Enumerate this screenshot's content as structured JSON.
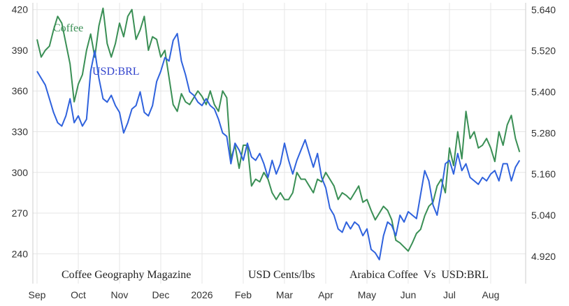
{
  "chart_data": {
    "type": "line",
    "x_ticks": [
      "Sep",
      "Oct",
      "Nov",
      "Dec",
      "2026",
      "Feb",
      "Mar",
      "Apr",
      "May",
      "Jun",
      "Jul",
      "Aug"
    ],
    "y_left": {
      "ticks": [
        240,
        270,
        300,
        330,
        360,
        390,
        420
      ],
      "range": [
        218,
        425
      ]
    },
    "y_right": {
      "ticks": [
        "4.920",
        "5.040",
        "5.160",
        "5.280",
        "5.400",
        "5.520",
        "5.640"
      ],
      "range": [
        4.84,
        5.66
      ]
    },
    "grid": true,
    "series": [
      {
        "name": "Coffee",
        "axis": "left",
        "color": "#3a8f55",
        "x": [
          0,
          0.1,
          0.2,
          0.3,
          0.4,
          0.5,
          0.6,
          0.7,
          0.8,
          0.9,
          1.0,
          1.1,
          1.2,
          1.3,
          1.4,
          1.5,
          1.6,
          1.7,
          1.8,
          1.9,
          2.0,
          2.1,
          2.2,
          2.3,
          2.4,
          2.5,
          2.6,
          2.7,
          2.8,
          2.9,
          3.0,
          3.1,
          3.2,
          3.3,
          3.4,
          3.5,
          3.6,
          3.7,
          3.8,
          3.9,
          4.0,
          4.1,
          4.2,
          4.3,
          4.4,
          4.5,
          4.6,
          4.7,
          4.8,
          4.9,
          5.0,
          5.1,
          5.2,
          5.3,
          5.4,
          5.5,
          5.6,
          5.7,
          5.8,
          5.9,
          6.0,
          6.1,
          6.2,
          6.3,
          6.4,
          6.5,
          6.6,
          6.7,
          6.8,
          6.9,
          7.0,
          7.1,
          7.2,
          7.3,
          7.4,
          7.5,
          7.6,
          7.7,
          7.8,
          7.9,
          8.0,
          8.1,
          8.2,
          8.3,
          8.4,
          8.5,
          8.6,
          8.7,
          8.8,
          8.9,
          9.0,
          9.1,
          9.2,
          9.3,
          9.4,
          9.5,
          9.6,
          9.7,
          9.8,
          9.9,
          10.0,
          10.1,
          10.2,
          10.3,
          10.4,
          10.5,
          10.6,
          10.7,
          10.8,
          10.9,
          11.0,
          11.1,
          11.2,
          11.3,
          11.4,
          11.5,
          11.6,
          11.7
        ],
        "y": [
          398,
          385,
          390,
          393,
          405,
          415,
          410,
          395,
          380,
          352,
          365,
          372,
          390,
          402,
          385,
          408,
          421,
          395,
          385,
          395,
          410,
          400,
          415,
          420,
          398,
          405,
          415,
          390,
          400,
          398,
          385,
          390,
          370,
          350,
          345,
          358,
          352,
          350,
          355,
          360,
          356,
          350,
          360,
          350,
          345,
          360,
          355,
          310,
          320,
          303,
          320,
          320,
          290,
          295,
          293,
          300,
          295,
          285,
          280,
          285,
          280,
          280,
          285,
          300,
          295,
          295,
          290,
          285,
          295,
          293,
          300,
          295,
          290,
          280,
          285,
          283,
          280,
          285,
          290,
          278,
          280,
          272,
          265,
          270,
          275,
          272,
          265,
          250,
          248,
          245,
          242,
          248,
          255,
          258,
          268,
          275,
          278,
          290,
          295,
          285,
          318,
          305,
          330,
          310,
          345,
          325,
          330,
          318,
          320,
          325,
          318,
          308,
          330,
          320,
          335,
          342,
          325,
          315
        ]
      },
      {
        "name": "USD:BRL",
        "axis": "right",
        "color": "#2f62dd",
        "x": [
          0,
          0.1,
          0.2,
          0.3,
          0.4,
          0.5,
          0.6,
          0.7,
          0.8,
          0.9,
          1.0,
          1.1,
          1.2,
          1.3,
          1.4,
          1.5,
          1.6,
          1.7,
          1.8,
          1.9,
          2.0,
          2.1,
          2.2,
          2.3,
          2.4,
          2.5,
          2.6,
          2.7,
          2.8,
          2.9,
          3.0,
          3.1,
          3.2,
          3.3,
          3.4,
          3.5,
          3.6,
          3.7,
          3.8,
          3.9,
          4.0,
          4.1,
          4.2,
          4.3,
          4.4,
          4.5,
          4.6,
          4.7,
          4.8,
          4.9,
          5.0,
          5.1,
          5.2,
          5.3,
          5.4,
          5.5,
          5.6,
          5.7,
          5.8,
          5.9,
          6.0,
          6.1,
          6.2,
          6.3,
          6.4,
          6.5,
          6.6,
          6.7,
          6.8,
          6.9,
          7.0,
          7.1,
          7.2,
          7.3,
          7.4,
          7.5,
          7.6,
          7.7,
          7.8,
          7.9,
          8.0,
          8.1,
          8.2,
          8.3,
          8.4,
          8.5,
          8.6,
          8.7,
          8.8,
          8.9,
          9.0,
          9.1,
          9.2,
          9.3,
          9.4,
          9.5,
          9.6,
          9.7,
          9.8,
          9.9,
          10.0,
          10.1,
          10.2,
          10.3,
          10.4,
          10.5,
          10.6,
          10.7,
          10.8,
          10.9,
          11.0,
          11.1,
          11.2,
          11.3,
          11.4,
          11.5,
          11.6,
          11.7
        ],
        "y": [
          5.46,
          5.44,
          5.42,
          5.38,
          5.34,
          5.31,
          5.3,
          5.33,
          5.38,
          5.31,
          5.33,
          5.3,
          5.32,
          5.46,
          5.52,
          5.44,
          5.38,
          5.37,
          5.39,
          5.36,
          5.34,
          5.28,
          5.31,
          5.35,
          5.36,
          5.4,
          5.34,
          5.33,
          5.36,
          5.43,
          5.46,
          5.5,
          5.49,
          5.55,
          5.57,
          5.49,
          5.45,
          5.4,
          5.39,
          5.37,
          5.36,
          5.38,
          5.36,
          5.35,
          5.32,
          5.28,
          5.27,
          5.19,
          5.25,
          5.23,
          5.2,
          5.25,
          5.21,
          5.2,
          5.22,
          5.19,
          5.15,
          5.2,
          5.16,
          5.19,
          5.25,
          5.2,
          5.16,
          5.2,
          5.23,
          5.26,
          5.22,
          5.18,
          5.22,
          5.15,
          5.12,
          5.06,
          5.04,
          5.0,
          4.99,
          5.02,
          5.0,
          5.02,
          5.01,
          4.98,
          5.0,
          4.94,
          4.93,
          4.91,
          4.98,
          5.02,
          5.01,
          4.98,
          5.04,
          5.02,
          5.05,
          5.04,
          5.03,
          5.1,
          5.17,
          5.14,
          5.07,
          5.04,
          5.11,
          5.19,
          5.2,
          5.16,
          5.22,
          5.17,
          5.19,
          5.15,
          5.14,
          5.13,
          5.15,
          5.14,
          5.16,
          5.17,
          5.14,
          5.19,
          5.19,
          5.14,
          5.18,
          5.2
        ]
      }
    ],
    "annotations": [
      "Coffee Geography Magazine",
      "USD Cents/lbs",
      "Arabica Coffee  Vs  USD:BRL"
    ]
  }
}
